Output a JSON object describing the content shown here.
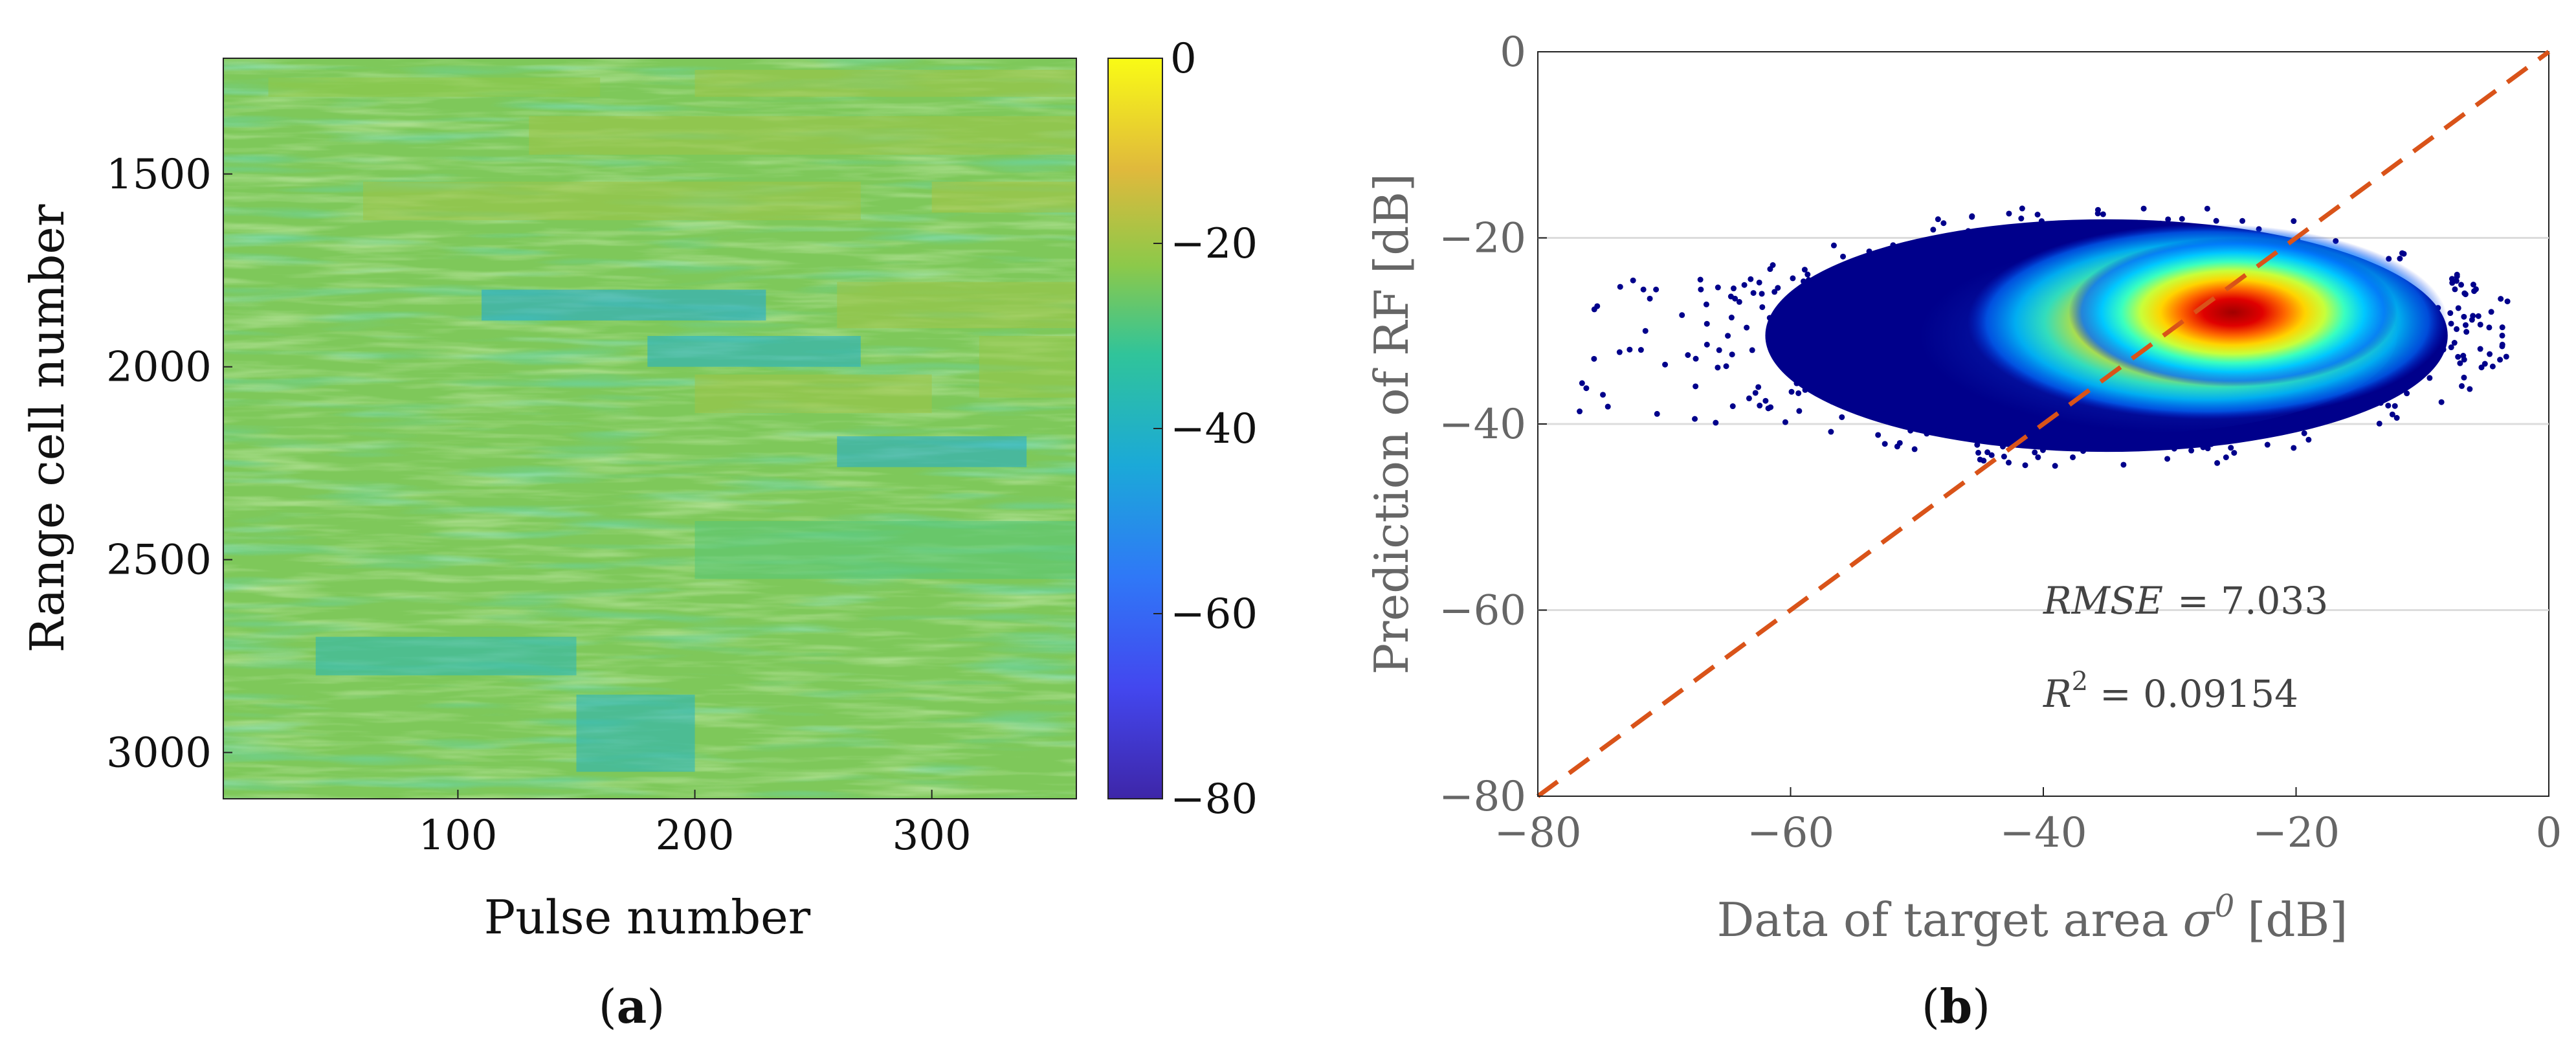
{
  "chart_data": [
    {
      "panel_label_prefix": "(",
      "panel_label_letter": "a",
      "panel_label_suffix": ")",
      "type": "heatmap",
      "title": "",
      "xlabel": "Pulse number",
      "ylabel": "Range cell number",
      "xlim": [
        1,
        361
      ],
      "ylim": [
        1200,
        3120
      ],
      "x_ticks": [
        100,
        200,
        300
      ],
      "y_ticks": [
        1500,
        2000,
        2500,
        3000
      ],
      "y_reversed": true,
      "colorbar": {
        "range": [
          -80,
          0
        ],
        "ticks": [
          0,
          -20,
          -40,
          -60,
          -80
        ],
        "tick_labels": [
          "0",
          "−20",
          "−40",
          "−60",
          "−80"
        ],
        "colormap": "parula"
      },
      "typical_value_range_db": [
        -45,
        -15
      ],
      "bands": [
        {
          "x": [
            20,
            160
          ],
          "y": [
            1250,
            1300
          ],
          "level_db": -22
        },
        {
          "x": [
            200,
            361
          ],
          "y": [
            1230,
            1300
          ],
          "level_db": -20
        },
        {
          "x": [
            130,
            361
          ],
          "y": [
            1350,
            1450
          ],
          "level_db": -20
        },
        {
          "x": [
            60,
            270
          ],
          "y": [
            1520,
            1620
          ],
          "level_db": -20
        },
        {
          "x": [
            300,
            361
          ],
          "y": [
            1520,
            1600
          ],
          "level_db": -19
        },
        {
          "x": [
            260,
            361
          ],
          "y": [
            1780,
            1900
          ],
          "level_db": -20
        },
        {
          "x": [
            200,
            300
          ],
          "y": [
            2020,
            2120
          ],
          "level_db": -20
        },
        {
          "x": [
            320,
            361
          ],
          "y": [
            1920,
            2080
          ],
          "level_db": -21
        },
        {
          "x": [
            110,
            230
          ],
          "y": [
            1800,
            1880
          ],
          "level_db": -44
        },
        {
          "x": [
            180,
            270
          ],
          "y": [
            1920,
            2000
          ],
          "level_db": -42
        },
        {
          "x": [
            260,
            340
          ],
          "y": [
            2180,
            2260
          ],
          "level_db": -43
        },
        {
          "x": [
            40,
            150
          ],
          "y": [
            2700,
            2800
          ],
          "level_db": -38
        },
        {
          "x": [
            150,
            200
          ],
          "y": [
            2850,
            3050
          ],
          "level_db": -40
        },
        {
          "x": [
            200,
            361
          ],
          "y": [
            2400,
            2550
          ],
          "level_db": -28
        }
      ]
    },
    {
      "panel_label_prefix": "(",
      "panel_label_letter": "b",
      "panel_label_suffix": ")",
      "type": "scatter",
      "title": "",
      "xlabel": "Data of target area",
      "xlabel_symbol": "σ",
      "xlabel_superscript": "0",
      "xlabel_unit": "[dB]",
      "ylabel": "Prediction of RF [dB]",
      "xlim": [
        -80,
        0
      ],
      "ylim": [
        -80,
        0
      ],
      "x_ticks": [
        -80,
        -60,
        -40,
        -20,
        0
      ],
      "x_tick_labels": [
        "−80",
        "−60",
        "−40",
        "−20",
        "0"
      ],
      "y_ticks": [
        0,
        -20,
        -40,
        -60,
        -80
      ],
      "y_tick_labels": [
        "0",
        "−20",
        "−40",
        "−60",
        "−80"
      ],
      "grid": "horizontal",
      "reference_line": {
        "x": [
          -80,
          0
        ],
        "y": [
          -80,
          0
        ],
        "style": "dashed",
        "color": "#d95319"
      },
      "density_colormap": "jet",
      "cloud": {
        "x_range": [
          -78,
          -3
        ],
        "y_range": [
          -43,
          -18
        ],
        "peak": [
          -25,
          -28
        ]
      },
      "annotations": [
        {
          "label": "RMSE",
          "value": "= 7.033",
          "x": -40,
          "y": -59
        },
        {
          "label": "R",
          "sup": "2",
          "value": "= 0.09154",
          "x": -40,
          "y": -69
        }
      ]
    }
  ]
}
